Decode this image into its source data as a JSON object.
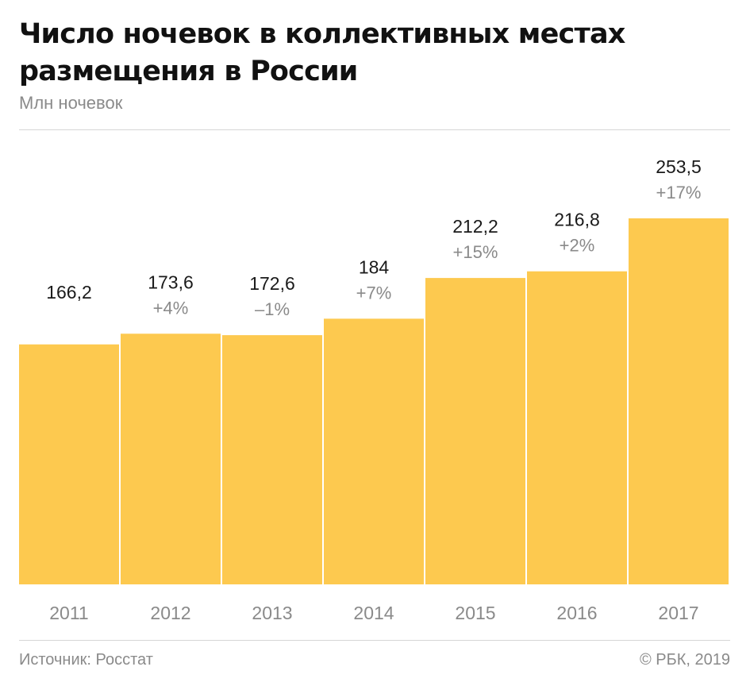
{
  "title_lines": [
    "Число ночевок в коллективных местах",
    "размещения в России"
  ],
  "subtitle": "Млн ночевок",
  "source": "Источник: Росстат",
  "copyright": "© РБК, 2019",
  "colors": {
    "bar": "#FDC94F",
    "value_label": "#1a1a1a",
    "change_label": "#8a8a8a",
    "axis_label": "#8a8a8a"
  },
  "chart_data": {
    "type": "bar",
    "title": "Число ночевок в коллективных местах размещения в России",
    "ylabel": "Млн ночевок",
    "categories": [
      "2011",
      "2012",
      "2013",
      "2014",
      "2015",
      "2016",
      "2017"
    ],
    "values": [
      166.2,
      173.6,
      172.6,
      184,
      212.2,
      216.8,
      253.5
    ],
    "value_labels": [
      "166,2",
      "173,6",
      "172,6",
      "184",
      "212,2",
      "216,8",
      "253,5"
    ],
    "change_labels": [
      "",
      "+4%",
      "–1%",
      "+7%",
      "+15%",
      "+2%",
      "+17%"
    ],
    "ylim": [
      0,
      253.5
    ],
    "grid": false,
    "legend": "none"
  }
}
